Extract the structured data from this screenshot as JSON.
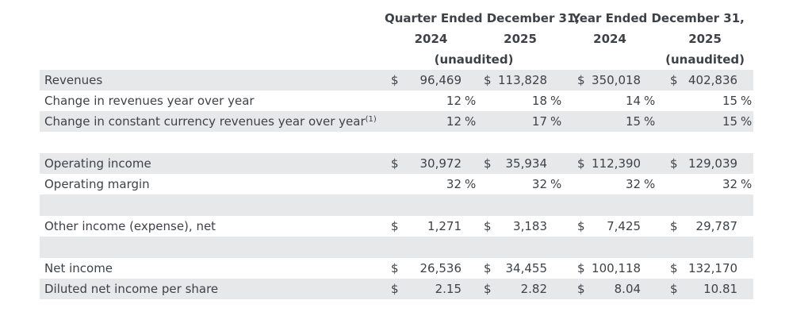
{
  "table": {
    "header": {
      "groups": [
        {
          "title": "Quarter Ended December 31,",
          "year1": "2024",
          "year2": "2025",
          "unaudited": "(unaudited)"
        },
        {
          "title": "Year Ended December 31,",
          "year1": "2024",
          "year2": "2025",
          "unaudited": "(unaudited)"
        }
      ]
    },
    "rows": [
      {
        "label": "Revenues",
        "cells": [
          {
            "cur": "$",
            "val": "96,469",
            "sfx": ""
          },
          {
            "cur": "$",
            "val": "113,828",
            "sfx": ""
          },
          {
            "cur": "$",
            "val": "350,018",
            "sfx": ""
          },
          {
            "cur": "$",
            "val": "402,836",
            "sfx": ""
          }
        ]
      },
      {
        "label": "Change in revenues year over year",
        "cells": [
          {
            "cur": "",
            "val": "12",
            "sfx": "%"
          },
          {
            "cur": "",
            "val": "18",
            "sfx": "%"
          },
          {
            "cur": "",
            "val": "14",
            "sfx": "%"
          },
          {
            "cur": "",
            "val": "15",
            "sfx": "%"
          }
        ]
      },
      {
        "label": "Change in constant currency revenues year over year",
        "sup": "(1)",
        "cells": [
          {
            "cur": "",
            "val": "12",
            "sfx": "%"
          },
          {
            "cur": "",
            "val": "17",
            "sfx": "%"
          },
          {
            "cur": "",
            "val": "15",
            "sfx": "%"
          },
          {
            "cur": "",
            "val": "15",
            "sfx": "%"
          }
        ]
      },
      {
        "label": "Operating income",
        "cells": [
          {
            "cur": "$",
            "val": "30,972",
            "sfx": ""
          },
          {
            "cur": "$",
            "val": "35,934",
            "sfx": ""
          },
          {
            "cur": "$",
            "val": "112,390",
            "sfx": ""
          },
          {
            "cur": "$",
            "val": "129,039",
            "sfx": ""
          }
        ]
      },
      {
        "label": "Operating margin",
        "cells": [
          {
            "cur": "",
            "val": "32",
            "sfx": "%"
          },
          {
            "cur": "",
            "val": "32",
            "sfx": "%"
          },
          {
            "cur": "",
            "val": "32",
            "sfx": "%"
          },
          {
            "cur": "",
            "val": "32",
            "sfx": "%"
          }
        ]
      },
      {
        "label": "Other income (expense), net",
        "cells": [
          {
            "cur": "$",
            "val": "1,271",
            "sfx": ""
          },
          {
            "cur": "$",
            "val": "3,183",
            "sfx": ""
          },
          {
            "cur": "$",
            "val": "7,425",
            "sfx": ""
          },
          {
            "cur": "$",
            "val": "29,787",
            "sfx": ""
          }
        ]
      },
      {
        "label": "Net income",
        "cells": [
          {
            "cur": "$",
            "val": "26,536",
            "sfx": ""
          },
          {
            "cur": "$",
            "val": "34,455",
            "sfx": ""
          },
          {
            "cur": "$",
            "val": "100,118",
            "sfx": ""
          },
          {
            "cur": "$",
            "val": "132,170",
            "sfx": ""
          }
        ]
      },
      {
        "label": "Diluted net income per share",
        "cells": [
          {
            "cur": "$",
            "val": "2.15",
            "sfx": ""
          },
          {
            "cur": "$",
            "val": "2.82",
            "sfx": ""
          },
          {
            "cur": "$",
            "val": "8.04",
            "sfx": ""
          },
          {
            "cur": "$",
            "val": "10.81",
            "sfx": ""
          }
        ]
      }
    ]
  },
  "colors": {
    "row_shade": "#e6e8ea",
    "text": "#3e4247",
    "background": "#ffffff"
  }
}
